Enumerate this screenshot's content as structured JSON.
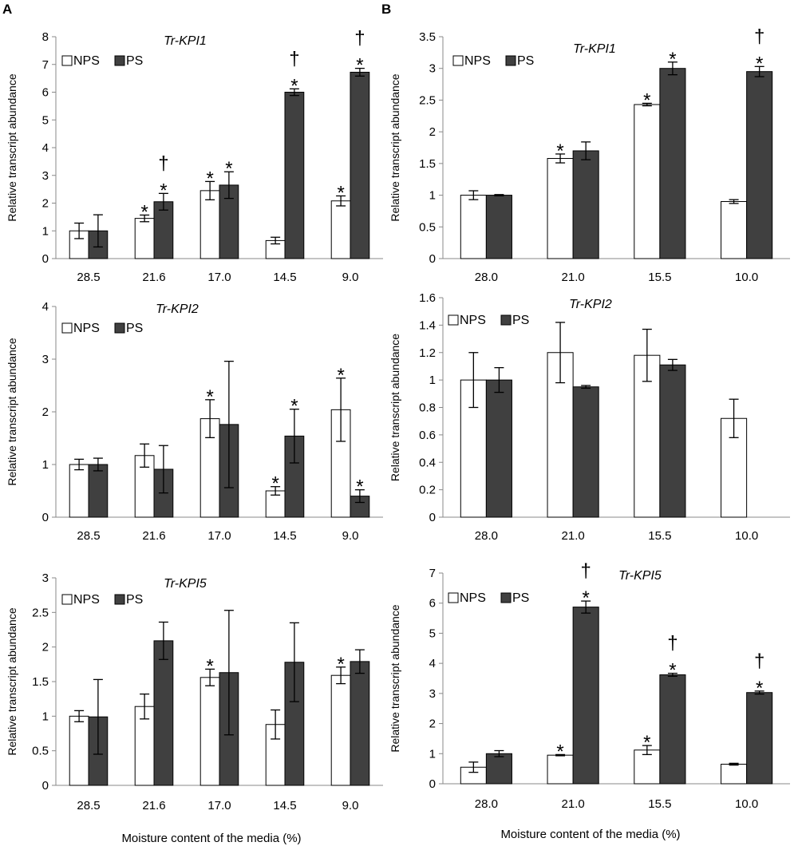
{
  "panel_labels": [
    "A",
    "B"
  ],
  "xlabel": "Moisture content of the media (%)",
  "legend": [
    "NPS",
    "PS"
  ],
  "colors": {
    "NPS": "#ffffff",
    "PS": "#404040",
    "axis": "#888888",
    "stroke": "#000000"
  },
  "chart_data": [
    {
      "type": "bar",
      "panel": "A",
      "title": "Tr-KPI1",
      "ylabel": "Relative transcript abundance",
      "categories": [
        "28.5",
        "21.6",
        "17.0",
        "14.5",
        "9.0"
      ],
      "ylim": [
        0,
        8
      ],
      "yticks": [
        "0",
        "1",
        "2",
        "3",
        "4",
        "5",
        "6",
        "7",
        "8"
      ],
      "series": [
        {
          "name": "NPS",
          "values": [
            1.0,
            1.45,
            2.45,
            0.65,
            2.08
          ],
          "errors": [
            0.28,
            0.12,
            0.33,
            0.12,
            0.18
          ],
          "marks": [
            "",
            "*",
            "*",
            "",
            "*"
          ]
        },
        {
          "name": "PS",
          "values": [
            1.0,
            2.05,
            2.65,
            6.0,
            6.72
          ],
          "errors": [
            0.58,
            0.3,
            0.48,
            0.12,
            0.14
          ],
          "marks": [
            "",
            "* †",
            "*",
            "* †",
            "* †"
          ]
        }
      ]
    },
    {
      "type": "bar",
      "panel": "A",
      "title": "Tr-KPI2",
      "ylabel": "Relative transcript abundance",
      "categories": [
        "28.5",
        "21.6",
        "17.0",
        "14.5",
        "9.0"
      ],
      "ylim": [
        0,
        4
      ],
      "yticks": [
        "0",
        "1",
        "2",
        "3",
        "4"
      ],
      "series": [
        {
          "name": "NPS",
          "values": [
            1.0,
            1.17,
            1.87,
            0.5,
            2.04
          ],
          "errors": [
            0.1,
            0.22,
            0.36,
            0.08,
            0.6
          ],
          "marks": [
            "",
            "",
            "*",
            "*",
            "*"
          ]
        },
        {
          "name": "PS",
          "values": [
            1.0,
            0.91,
            1.76,
            1.54,
            0.4
          ],
          "errors": [
            0.12,
            0.45,
            1.2,
            0.51,
            0.12
          ],
          "marks": [
            "",
            "",
            "",
            "*",
            "*"
          ]
        }
      ]
    },
    {
      "type": "bar",
      "panel": "A",
      "title": "Tr-KPI5",
      "ylabel": "Relative transcript abundance",
      "categories": [
        "28.5",
        "21.6",
        "17.0",
        "14.5",
        "9.0"
      ],
      "ylim": [
        0,
        3
      ],
      "yticks": [
        "0",
        "0.5",
        "1",
        "1.5",
        "2",
        "2.5",
        "3"
      ],
      "series": [
        {
          "name": "NPS",
          "values": [
            1.0,
            1.14,
            1.56,
            0.88,
            1.59
          ],
          "errors": [
            0.08,
            0.18,
            0.12,
            0.21,
            0.12
          ],
          "marks": [
            "",
            "",
            "*",
            "",
            "*"
          ]
        },
        {
          "name": "PS",
          "values": [
            0.99,
            2.09,
            1.63,
            1.78,
            1.79
          ],
          "errors": [
            0.54,
            0.27,
            0.9,
            0.57,
            0.17
          ],
          "marks": [
            "",
            "",
            "",
            "",
            ""
          ]
        }
      ]
    },
    {
      "type": "bar",
      "panel": "B",
      "title": "Tr-KPI1",
      "ylabel": "Relative transcript abundance",
      "categories": [
        "28.0",
        "21.0",
        "15.5",
        "10.0"
      ],
      "ylim": [
        0,
        3.5
      ],
      "yticks": [
        "0",
        "0.5",
        "1",
        "1.5",
        "2",
        "2.5",
        "3",
        "3.5"
      ],
      "series": [
        {
          "name": "NPS",
          "values": [
            1.0,
            1.58,
            2.43,
            0.9
          ],
          "errors": [
            0.07,
            0.07,
            0.02,
            0.03
          ],
          "marks": [
            "",
            "*",
            "*",
            ""
          ]
        },
        {
          "name": "PS",
          "values": [
            1.0,
            1.7,
            3.0,
            2.95
          ],
          "errors": [
            0.01,
            0.14,
            0.1,
            0.08
          ],
          "marks": [
            "",
            "",
            "*",
            "* †"
          ]
        }
      ]
    },
    {
      "type": "bar",
      "panel": "B",
      "title": "Tr-KPI2",
      "ylabel": "Relative transcript abundance",
      "categories": [
        "28.0",
        "21.0",
        "15.5",
        "10.0"
      ],
      "ylim": [
        0,
        1.6
      ],
      "yticks": [
        "0",
        "0.2",
        "0.4",
        "0.6",
        "0.8",
        "1",
        "1.2",
        "1.4",
        "1.6"
      ],
      "series": [
        {
          "name": "NPS",
          "values": [
            1.0,
            1.2,
            1.18,
            0.72
          ],
          "errors": [
            0.2,
            0.22,
            0.19,
            0.14
          ],
          "marks": [
            "",
            "",
            "",
            ""
          ]
        },
        {
          "name": "PS",
          "values": [
            1.0,
            0.95,
            1.11,
            null
          ],
          "errors": [
            0.09,
            0.01,
            0.04,
            null
          ],
          "marks": [
            "",
            "",
            "",
            ""
          ]
        }
      ]
    },
    {
      "type": "bar",
      "panel": "B",
      "title": "Tr-KPI5",
      "ylabel": "Relative transcript abundance",
      "categories": [
        "28.0",
        "21.0",
        "15.5",
        "10.0"
      ],
      "ylim": [
        0,
        7
      ],
      "yticks": [
        "0",
        "1",
        "2",
        "3",
        "4",
        "5",
        "6",
        "7"
      ],
      "series": [
        {
          "name": "NPS",
          "values": [
            0.55,
            0.95,
            1.12,
            0.65
          ],
          "errors": [
            0.17,
            0.02,
            0.15,
            0.03
          ],
          "marks": [
            "",
            "*",
            "*",
            ""
          ]
        },
        {
          "name": "PS",
          "values": [
            1.0,
            5.87,
            3.62,
            3.03
          ],
          "errors": [
            0.1,
            0.2,
            0.05,
            0.05
          ],
          "marks": [
            "",
            "* †",
            "* †",
            "* †"
          ]
        }
      ]
    }
  ]
}
